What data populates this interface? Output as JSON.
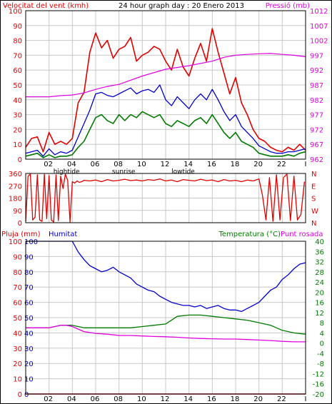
{
  "colors": {
    "wind": "#e00000",
    "pressure": "#e000e0",
    "humidity": "#0000cc",
    "temperature": "#007a00",
    "dewpoint": "#e000e0",
    "rain": "#e00000",
    "grid": "#c8c8c8",
    "frame": "#000000"
  },
  "header": {
    "wind_label": "Velocitat del vent (kmh)",
    "title": "24 hour graph day : 20 Enero 2013",
    "pressure_label": "Pressió (mb)"
  },
  "bottom_header": {
    "rain_label": "Pluja (mm)",
    "humidity_label": "Humitat",
    "temperature_label": "Temperatura (°C)",
    "dewpoint_label": "Punt rosada"
  },
  "time_axis": {
    "hour_labels": [
      "02",
      "04",
      "06",
      "08",
      "10",
      "12",
      "14",
      "16",
      "18",
      "20",
      "22",
      "I"
    ],
    "events": [
      {
        "label": "hightide",
        "hour": 3.5
      },
      {
        "label": "sunrise",
        "hour": 8.4
      },
      {
        "label": "lowtide",
        "hour": 13.5
      }
    ]
  },
  "chart_data": [
    {
      "type": "line",
      "name": "wind-pressure",
      "x_unit": "hour",
      "xlim": [
        0,
        24
      ],
      "y_left": {
        "label": "Velocitat del vent (kmh)",
        "ylim": [
          0,
          100
        ],
        "ticks": [
          0,
          10,
          20,
          30,
          40,
          50,
          60,
          70,
          80,
          90,
          100
        ]
      },
      "y_right": {
        "label": "Pressió (mb)",
        "ylim": [
          962,
          1012
        ],
        "ticks": [
          962,
          967,
          972,
          977,
          982,
          987,
          992,
          997,
          1002,
          1007,
          1012
        ]
      },
      "series": [
        {
          "name": "wind-gust",
          "axis": "left",
          "x": [
            0,
            0.5,
            1,
            1.5,
            2,
            2.5,
            3,
            3.5,
            4,
            4.5,
            5,
            5.5,
            6,
            6.5,
            7,
            7.5,
            8,
            8.5,
            9,
            9.5,
            10,
            10.5,
            11,
            11.5,
            12,
            12.5,
            13,
            13.5,
            14,
            14.5,
            15,
            15.5,
            16,
            16.5,
            17,
            17.5,
            18,
            18.5,
            19,
            19.5,
            20,
            20.5,
            21,
            21.5,
            22,
            22.5,
            23,
            23.5,
            24
          ],
          "values": [
            8,
            14,
            15,
            5,
            18,
            10,
            12,
            10,
            14,
            38,
            45,
            72,
            85,
            75,
            80,
            68,
            74,
            76,
            82,
            66,
            70,
            72,
            76,
            74,
            66,
            60,
            74,
            62,
            56,
            68,
            78,
            66,
            88,
            72,
            58,
            44,
            55,
            38,
            30,
            20,
            14,
            12,
            8,
            6,
            5,
            8,
            6,
            10,
            6
          ]
        },
        {
          "name": "wind-average",
          "axis": "left",
          "x": [
            0,
            0.5,
            1,
            1.5,
            2,
            2.5,
            3,
            3.5,
            4,
            4.5,
            5,
            5.5,
            6,
            6.5,
            7,
            7.5,
            8,
            8.5,
            9,
            9.5,
            10,
            10.5,
            11,
            11.5,
            12,
            12.5,
            13,
            13.5,
            14,
            14.5,
            15,
            15.5,
            16,
            16.5,
            17,
            17.5,
            18,
            18.5,
            19,
            19.5,
            20,
            20.5,
            21,
            21.5,
            22,
            22.5,
            23,
            23.5,
            24
          ],
          "values": [
            4,
            5,
            6,
            2,
            7,
            3,
            5,
            4,
            6,
            15,
            24,
            33,
            44,
            45,
            43,
            42,
            44,
            46,
            48,
            44,
            46,
            47,
            45,
            50,
            40,
            36,
            42,
            38,
            34,
            40,
            44,
            40,
            47,
            40,
            32,
            26,
            30,
            22,
            18,
            14,
            9,
            7,
            5,
            4,
            4,
            5,
            5,
            6,
            7
          ]
        },
        {
          "name": "wind-low",
          "axis": "left",
          "x": [
            0,
            0.5,
            1,
            1.5,
            2,
            2.5,
            3,
            3.5,
            4,
            4.5,
            5,
            5.5,
            6,
            6.5,
            7,
            7.5,
            8,
            8.5,
            9,
            9.5,
            10,
            10.5,
            11,
            11.5,
            12,
            12.5,
            13,
            13.5,
            14,
            14.5,
            15,
            15.5,
            16,
            16.5,
            17,
            17.5,
            18,
            18.5,
            19,
            19.5,
            20,
            20.5,
            21,
            21.5,
            22,
            22.5,
            23,
            23.5,
            24
          ],
          "values": [
            2,
            3,
            4,
            1,
            3,
            1,
            2,
            2,
            3,
            8,
            12,
            20,
            28,
            30,
            26,
            24,
            30,
            26,
            30,
            28,
            32,
            30,
            28,
            30,
            24,
            22,
            26,
            24,
            22,
            26,
            28,
            24,
            30,
            24,
            18,
            14,
            18,
            12,
            10,
            8,
            4,
            3,
            2,
            2,
            2,
            3,
            2,
            4,
            5
          ]
        },
        {
          "name": "pressure",
          "axis": "right",
          "x": [
            0,
            2,
            3,
            4,
            5,
            6,
            7,
            8,
            9,
            10,
            12,
            14,
            16,
            17,
            18,
            19,
            20,
            21,
            22,
            23,
            24
          ],
          "values": [
            983,
            983,
            983.4,
            983.6,
            984.3,
            985.5,
            986.5,
            987.2,
            988.6,
            990,
            992.3,
            993.5,
            995,
            996.3,
            997,
            997.3,
            997.5,
            997.6,
            997.3,
            997,
            996.5
          ]
        }
      ]
    },
    {
      "type": "line",
      "name": "wind-direction",
      "x_unit": "hour",
      "xlim": [
        0,
        24
      ],
      "y_left": {
        "ylim": [
          0,
          360
        ],
        "ticks": [
          0,
          90,
          180,
          270,
          360
        ]
      },
      "y_right": {
        "tick_labels": [
          "N",
          "W",
          "S",
          "E",
          "N"
        ]
      },
      "series": [
        {
          "name": "direction",
          "axis": "left",
          "x": [
            0,
            0.2,
            0.4,
            0.6,
            0.8,
            1,
            1.2,
            1.4,
            1.6,
            1.8,
            2,
            2.2,
            2.4,
            2.6,
            2.8,
            3,
            3.2,
            3.4,
            3.6,
            3.8,
            4,
            4.2,
            4.4,
            4.6,
            4.8,
            5,
            5.5,
            6,
            6.5,
            7,
            7.5,
            8,
            8.5,
            9,
            9.5,
            10,
            10.5,
            11,
            11.5,
            12,
            12.5,
            13,
            13.5,
            14,
            14.5,
            15,
            15.5,
            16,
            16.5,
            17,
            17.5,
            18,
            18.5,
            19,
            19.5,
            20,
            20.3,
            20.6,
            20.9,
            21.2,
            21.5,
            21.8,
            22.1,
            22.4,
            22.7,
            23,
            23.3,
            23.6,
            23.9
          ],
          "values": [
            10,
            340,
            355,
            20,
            40,
            350,
            20,
            10,
            355,
            30,
            345,
            20,
            5,
            350,
            15,
            340,
            250,
            355,
            310,
            5,
            300,
            290,
            305,
            295,
            300,
            310,
            305,
            312,
            300,
            315,
            305,
            310,
            318,
            308,
            312,
            305,
            315,
            310,
            320,
            305,
            312,
            300,
            315,
            310,
            305,
            318,
            308,
            312,
            300,
            315,
            305,
            310,
            300,
            312,
            305,
            320,
            200,
            20,
            330,
            10,
            350,
            20,
            330,
            355,
            15,
            340,
            20,
            60,
            300
          ]
        }
      ]
    },
    {
      "type": "line",
      "name": "rain-humidity-temperature",
      "x_unit": "hour",
      "xlim": [
        0,
        24
      ],
      "y_left": {
        "label": "Pluja (mm)",
        "ylim": [
          0,
          100
        ],
        "ticks": [
          0,
          10,
          20,
          30,
          40,
          50,
          60,
          70,
          80,
          90,
          100
        ],
        "inner_tick_labels": [
          0,
          10,
          20,
          30,
          40,
          50,
          60,
          70,
          80,
          90,
          100
        ]
      },
      "y_right": {
        "label": "Temperatura (°C)",
        "ylim": [
          -20,
          40
        ],
        "ticks": [
          -20,
          -16,
          -12,
          -8,
          -4,
          0,
          4,
          8,
          12,
          16,
          20,
          24,
          28,
          32,
          36,
          40
        ]
      },
      "series": [
        {
          "name": "humidity",
          "axis": "left",
          "x": [
            0,
            1,
            2,
            3,
            4,
            4.5,
            5,
            5.5,
            6,
            6.5,
            7,
            7.5,
            8,
            8.5,
            9,
            9.5,
            10,
            10.5,
            11,
            11.5,
            12,
            12.5,
            13,
            13.5,
            14,
            14.5,
            15,
            15.5,
            16,
            16.5,
            17,
            17.5,
            18,
            18.5,
            19,
            19.5,
            20,
            20.5,
            21,
            21.5,
            22,
            22.5,
            23,
            23.5,
            24
          ],
          "values": [
            100,
            100,
            100,
            100,
            100,
            93,
            88,
            84,
            82,
            80,
            81,
            83,
            80,
            78,
            76,
            72,
            70,
            68,
            67,
            64,
            62,
            60,
            59,
            58,
            58,
            57,
            58,
            56,
            57,
            58,
            56,
            55,
            55,
            54,
            56,
            58,
            60,
            64,
            68,
            70,
            75,
            78,
            82,
            85,
            86
          ]
        },
        {
          "name": "temperature",
          "axis": "right",
          "x": [
            0,
            1,
            2,
            3,
            3.5,
            4,
            5,
            6,
            7,
            8,
            9,
            10,
            11,
            12,
            13,
            14,
            15,
            16,
            17,
            18,
            19,
            20,
            21,
            22,
            23,
            24
          ],
          "values": [
            6,
            6,
            6,
            7,
            7,
            7,
            6,
            6,
            6,
            6,
            6,
            6.5,
            7,
            7.5,
            10.5,
            11,
            11,
            10.5,
            10,
            9.5,
            9,
            8,
            7,
            5,
            4,
            3.5
          ]
        },
        {
          "name": "dewpoint",
          "axis": "right",
          "x": [
            0,
            1,
            2,
            3,
            3.5,
            4,
            5,
            6,
            7,
            8,
            9,
            10,
            11,
            12,
            13,
            14,
            15,
            16,
            17,
            18,
            19,
            20,
            21,
            22,
            23,
            24
          ],
          "values": [
            6,
            6,
            6,
            7,
            7,
            6.5,
            4.5,
            3.8,
            3.5,
            3,
            3,
            2.8,
            2.6,
            2.5,
            2.3,
            2,
            1.8,
            1.7,
            1.6,
            1.6,
            1.4,
            1.2,
            1,
            0.7,
            0.5,
            0.5
          ]
        },
        {
          "name": "rain",
          "axis": "left",
          "x": [
            0,
            24
          ],
          "values": [
            0,
            0
          ]
        }
      ]
    }
  ]
}
